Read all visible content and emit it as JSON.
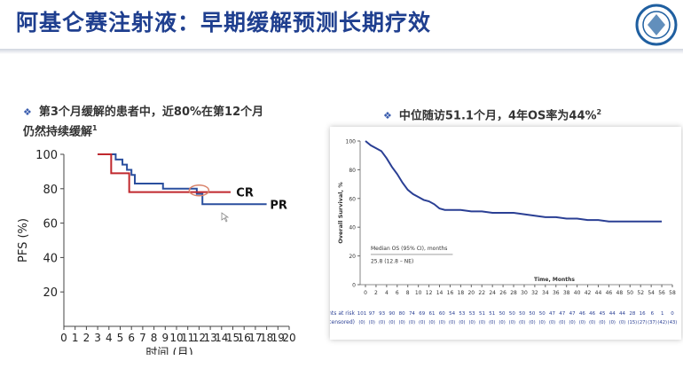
{
  "slide": {
    "title": "阿基仑赛注射液：早期缓解预测长期疗效",
    "bullet_left_line1": "第3个月缓解的患者中，近80%在第12个月",
    "bullet_left_line2": "仍然持续缓解",
    "bullet_left_sup": "1",
    "bullet_right": "中位随访51.1个月，4年OS率为44%",
    "bullet_right_sup": "2",
    "bullet_icon": "diamond-bullet-icon",
    "logo_icon": "university-seal-icon"
  },
  "colors": {
    "title": "#1f3f8f",
    "cr_line": "#c0282d",
    "pr_line": "#2a4f9e",
    "os_line": "#2a3f94",
    "accent": "#3a5dae"
  },
  "chart_data": [
    {
      "type": "line",
      "xlabel": "时间 (月)",
      "ylabel": "PFS (%)",
      "xlim": [
        0,
        20
      ],
      "ylim": [
        0,
        100
      ],
      "xticks": [
        0,
        1,
        2,
        3,
        4,
        5,
        6,
        7,
        8,
        9,
        10,
        11,
        12,
        13,
        14,
        15,
        16,
        17,
        18,
        19,
        20
      ],
      "yticks": [
        20,
        40,
        60,
        80,
        100
      ],
      "grid": false,
      "series": [
        {
          "name": "CR",
          "step": true,
          "x": [
            3,
            4.2,
            4.2,
            5.8,
            5.8,
            14.8
          ],
          "y": [
            100,
            100,
            89,
            89,
            78,
            78
          ]
        },
        {
          "name": "PR",
          "step": true,
          "x": [
            3,
            4.6,
            4.6,
            5.2,
            5.2,
            5.6,
            5.6,
            6,
            6,
            6.3,
            6.3,
            8.8,
            8.8,
            11.8,
            11.8,
            12.3,
            12.3,
            18
          ],
          "y": [
            100,
            100,
            97,
            97,
            94,
            94,
            91,
            91,
            88,
            88,
            83,
            83,
            80,
            80,
            77,
            77,
            71,
            71
          ]
        }
      ],
      "annotations": [
        "CR",
        "PR"
      ]
    },
    {
      "type": "line",
      "ylabel": "Overall Survival, %",
      "xlabel": "Time, Months",
      "xlim": [
        0,
        58
      ],
      "ylim": [
        0,
        100
      ],
      "xticks": [
        0,
        2,
        4,
        6,
        8,
        10,
        12,
        14,
        16,
        18,
        20,
        22,
        24,
        26,
        28,
        30,
        32,
        34,
        36,
        38,
        40,
        42,
        44,
        46,
        48,
        50,
        52,
        54,
        56,
        58
      ],
      "yticks": [
        0,
        20,
        40,
        60,
        80,
        100
      ],
      "grid": false,
      "series": [
        {
          "name": "",
          "step": true,
          "x": [
            0,
            1,
            2,
            3,
            4,
            5,
            6,
            7,
            8,
            9,
            10,
            11,
            12,
            13,
            14,
            15,
            16,
            18,
            20,
            22,
            24,
            26,
            28,
            30,
            32,
            34,
            36,
            38,
            40,
            42,
            44,
            46,
            48,
            50,
            52,
            54,
            56
          ],
          "y": [
            100,
            97,
            95,
            93,
            88,
            82,
            77,
            71,
            66,
            63,
            61,
            59,
            58,
            56,
            53,
            52,
            52,
            52,
            51,
            51,
            50,
            50,
            50,
            49,
            48,
            47,
            47,
            46,
            46,
            45,
            45,
            44,
            44,
            44,
            44,
            44,
            44
          ]
        }
      ],
      "median_text_line1": "Median OS (95% CI), months",
      "median_text_line2": "25.8 (12.8 – NE)",
      "at_risk_label": "Patients at risk",
      "censored_label": "(Patients censored)",
      "at_risk": [
        101,
        97,
        93,
        90,
        80,
        74,
        69,
        61,
        60,
        54,
        53,
        53,
        51,
        51,
        50,
        50,
        50,
        50,
        50,
        47,
        47,
        47,
        46,
        46,
        45,
        44,
        44,
        28,
        16,
        6,
        1,
        0
      ],
      "censored": [
        "(0)",
        "(0)",
        "(0)",
        "(0)",
        "(0)",
        "(0)",
        "(0)",
        "(0)",
        "(0)",
        "(0)",
        "(0)",
        "(0)",
        "(0)",
        "(0)",
        "(0)",
        "(0)",
        "(0)",
        "(0)",
        "(0)",
        "(0)",
        "(0)",
        "(0)",
        "(0)",
        "(0)",
        "(0)",
        "(0)",
        "(0)",
        "(15)",
        "(27)",
        "(37)",
        "(42)",
        "(43)"
      ]
    }
  ]
}
